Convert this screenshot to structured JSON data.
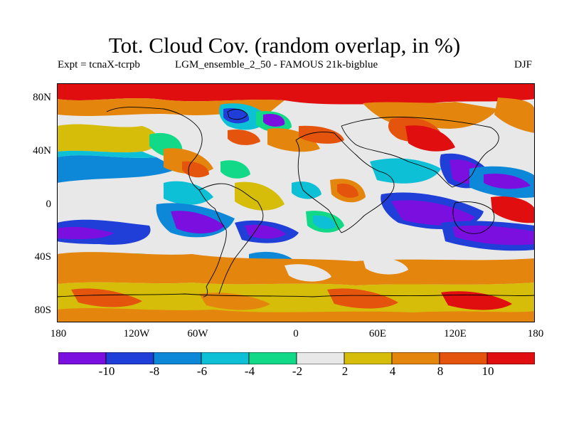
{
  "title": "Tot. Cloud Cov. (random overlap, in %)",
  "subtitle_left": "Expt = tcnaX-tcrpb",
  "subtitle_mid": "LGM_ensemble_2_50 - FAMOUS 21k-bigblue",
  "season": "DJF",
  "y_axis": {
    "labels": [
      "80N",
      "40N",
      "0",
      "40S",
      "80S"
    ]
  },
  "x_axis": {
    "labels": [
      "180",
      "120W",
      "60W",
      "0",
      "60E",
      "120E",
      "180"
    ]
  },
  "colorbar": {
    "colors": [
      "#7b0fe0",
      "#1f3fd8",
      "#0d88d9",
      "#0ec0d6",
      "#12d988",
      "#e8e8e8",
      "#d5bd0a",
      "#e4850d",
      "#e4540c",
      "#e00e0e"
    ],
    "labels": [
      "-10",
      "-8",
      "-6",
      "-4",
      "-2",
      "2",
      "4",
      "8",
      "10"
    ]
  },
  "palette": {
    "background": "#ffffff",
    "coastline": "#000000"
  }
}
